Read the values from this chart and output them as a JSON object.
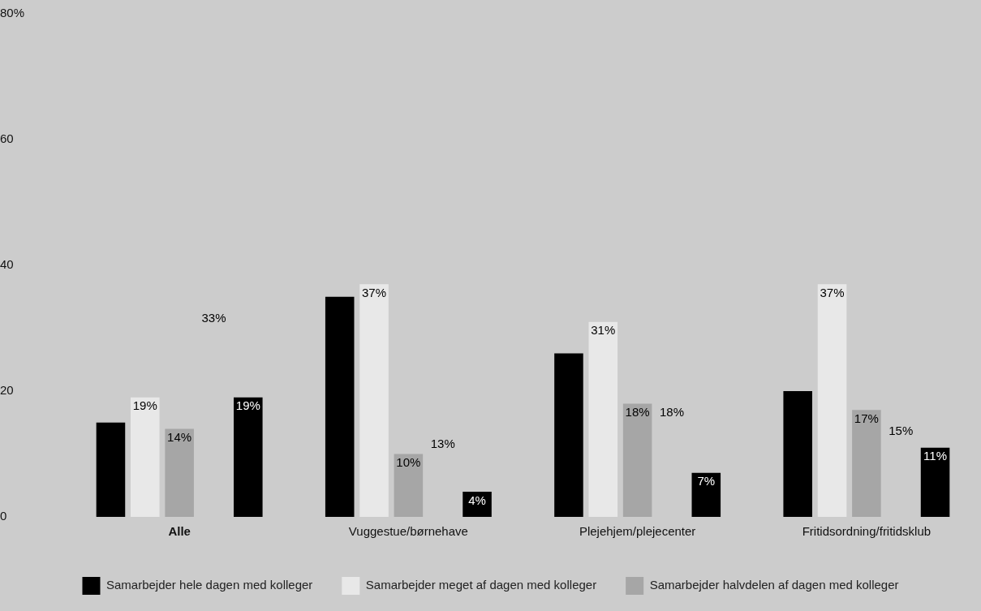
{
  "chart_data": {
    "type": "bar",
    "categories": [
      "Alle",
      "Vuggestue/børnehave",
      "Plejehjem/plejecenter",
      "Fritidsordning/fritidsklub"
    ],
    "annotations": [
      "33%",
      "13%",
      "18%",
      "15%"
    ],
    "ylim": [
      0,
      80
    ],
    "yticks": [
      0,
      20,
      40,
      60,
      {
        "value": 80,
        "label": "80%"
      }
    ],
    "grid": false,
    "legend": "bottom",
    "series": [
      {
        "name": "Samarbejder hele dagen med kolleger",
        "color": "#000000",
        "values": [
          15,
          35,
          26,
          20
        ]
      },
      {
        "name": "Samarbejder meget af dagen med kolleger",
        "color": "#e8e8e8",
        "values": [
          19,
          37,
          31,
          37
        ],
        "value_labels": [
          "19%",
          "37%",
          "31%",
          "37%"
        ]
      },
      {
        "name": "Samarbejder halvdelen af dagen med kolleger",
        "color": "#a6a6a6",
        "values": [
          14,
          10,
          18,
          17
        ],
        "value_labels": [
          "14%",
          "10%",
          "18%",
          "17%"
        ]
      },
      {
        "values": [
          null,
          null,
          null,
          null
        ]
      },
      {
        "color": "#000000",
        "values": [
          19,
          4,
          7,
          11
        ],
        "value_labels": [
          "19%",
          "4%",
          "7%",
          "11%"
        ]
      }
    ]
  }
}
